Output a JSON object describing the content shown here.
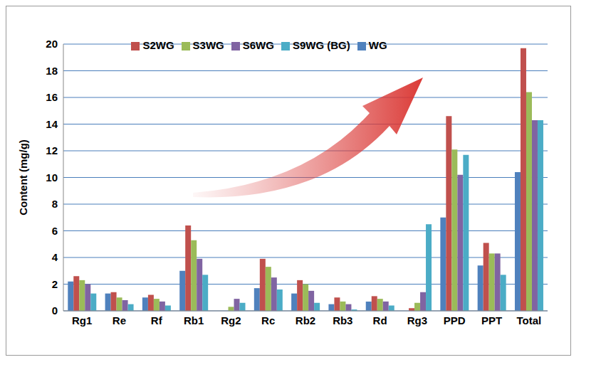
{
  "chart_data": {
    "type": "bar",
    "y_label": "Content (mg/g)",
    "categories": [
      "Rg1",
      "Re",
      "Rf",
      "Rb1",
      "Rg2",
      "Rc",
      "Rb2",
      "Rb3",
      "Rd",
      "Rg3",
      "PPD",
      "PPT",
      "Total"
    ],
    "series": [
      {
        "name": "WG",
        "color": "#4f81bd",
        "values": [
          2.2,
          1.3,
          1.0,
          3.0,
          0,
          1.7,
          1.3,
          0.5,
          0.7,
          0,
          7.0,
          3.4,
          10.4
        ]
      },
      {
        "name": "S2WG",
        "color": "#c0504d",
        "values": [
          2.6,
          1.4,
          1.2,
          6.4,
          0,
          3.9,
          2.3,
          1.0,
          1.1,
          0.2,
          14.6,
          5.1,
          19.7
        ]
      },
      {
        "name": "S3WG",
        "color": "#9bbb59",
        "values": [
          2.3,
          1.0,
          0.9,
          5.3,
          0.3,
          3.3,
          2.0,
          0.7,
          0.9,
          0.6,
          12.1,
          4.3,
          16.4
        ]
      },
      {
        "name": "S6WG",
        "color": "#8064a2",
        "values": [
          2.0,
          0.8,
          0.7,
          3.9,
          0.9,
          2.5,
          1.5,
          0.5,
          0.7,
          1.4,
          10.2,
          4.3,
          14.3
        ]
      },
      {
        "name": "S9WG (BG)",
        "color": "#4bacc6",
        "values": [
          1.3,
          0.5,
          0.4,
          2.7,
          0.6,
          1.6,
          0.6,
          0.1,
          0.4,
          6.5,
          11.7,
          2.7,
          14.3
        ]
      }
    ],
    "ylim": [
      0,
      20
    ],
    "yticks": [
      0,
      2,
      4,
      6,
      8,
      10,
      12,
      14,
      16,
      18,
      20
    ],
    "grid": true,
    "legend": "top"
  }
}
